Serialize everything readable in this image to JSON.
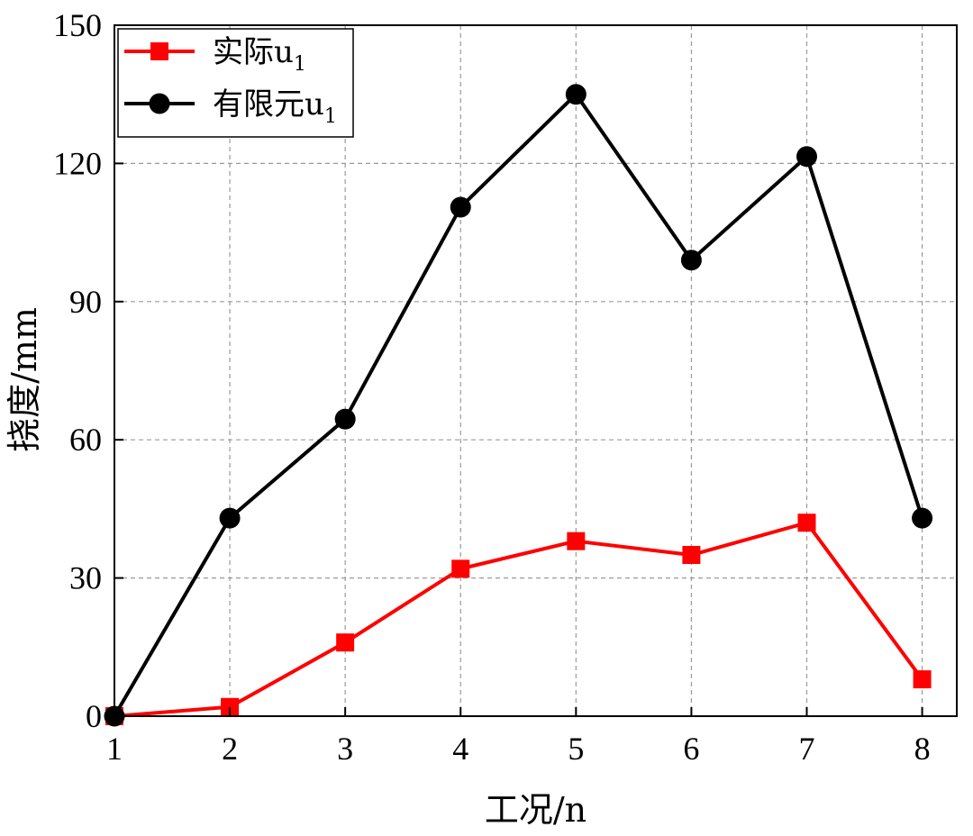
{
  "chart_data": {
    "type": "line",
    "title": "",
    "xlabel": "工况/n",
    "ylabel": "挠度/mm",
    "x": [
      1,
      2,
      3,
      4,
      5,
      6,
      7,
      8
    ],
    "xlim": [
      1,
      8.3
    ],
    "ylim": [
      0,
      150
    ],
    "xticks": [
      1,
      2,
      3,
      4,
      5,
      6,
      7,
      8
    ],
    "yticks": [
      0,
      30,
      60,
      90,
      120,
      150
    ],
    "grid": true,
    "legend_position": "top-left",
    "series": [
      {
        "name": "实际u",
        "name_subscript": "1",
        "marker": "square",
        "color": "#ff0000",
        "values": [
          0,
          2,
          16,
          32,
          38,
          35,
          42,
          8
        ]
      },
      {
        "name": "有限元u",
        "name_subscript": "1",
        "marker": "circle",
        "color": "#000000",
        "values": [
          0,
          43,
          64.5,
          110.5,
          135,
          99,
          121.5,
          43
        ]
      }
    ]
  }
}
